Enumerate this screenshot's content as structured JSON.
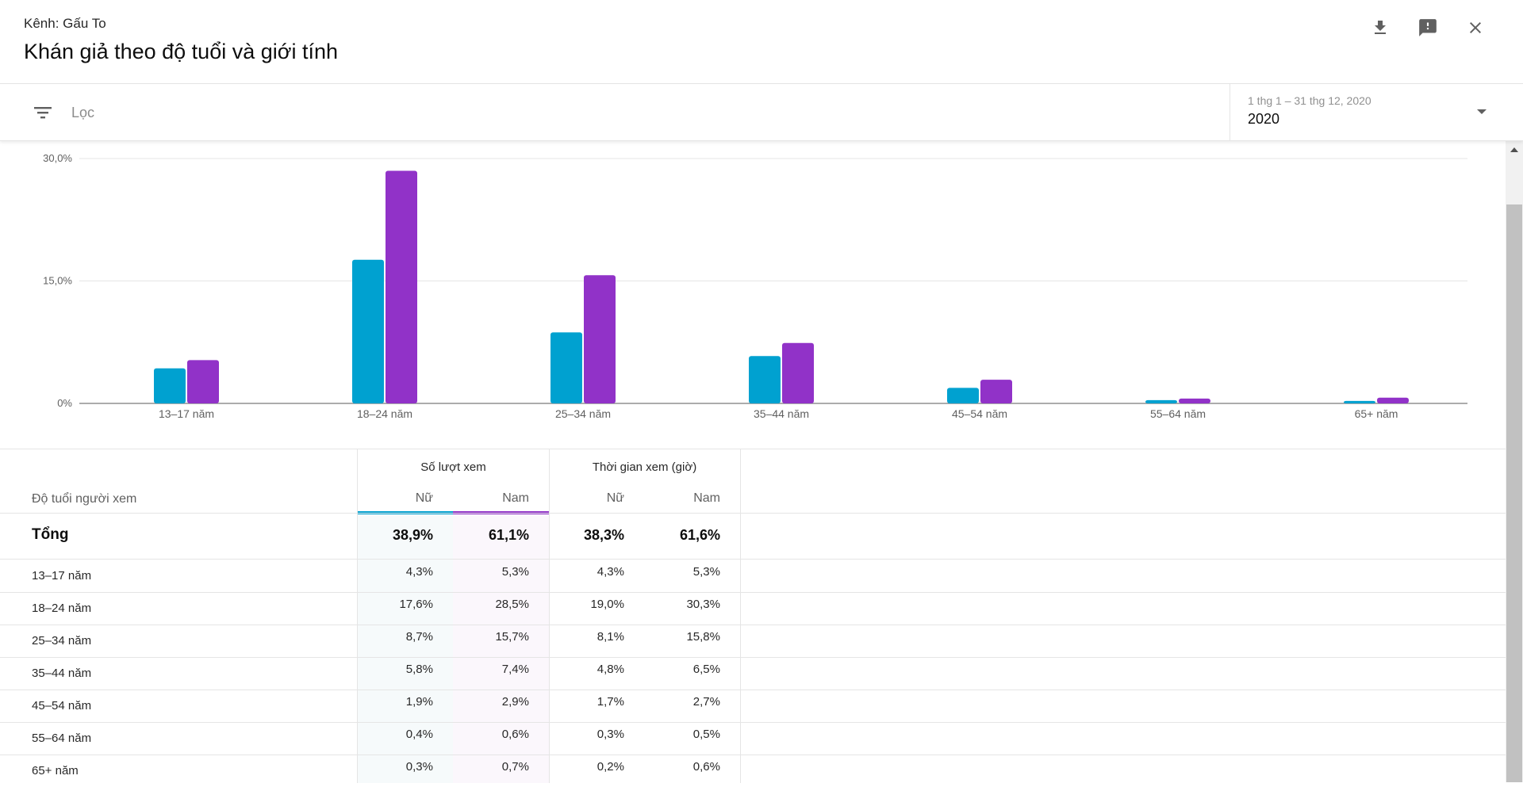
{
  "header": {
    "channel": "Kênh: Gấu To",
    "title": "Khán giả theo độ tuổi và giới tính",
    "icons": [
      "download-icon",
      "feedback-icon",
      "close-icon"
    ]
  },
  "filter": {
    "placeholder": "Lọc",
    "date_range": "1 thg 1 – 31 thg 12, 2020",
    "date_value": "2020"
  },
  "colors": {
    "female": "#00a1d0",
    "male": "#9132c8"
  },
  "chart_data": {
    "type": "bar",
    "categories": [
      "13–17 năm",
      "18–24 năm",
      "25–34 năm",
      "35–44 năm",
      "45–54 năm",
      "55–64 năm",
      "65+ năm"
    ],
    "series": [
      {
        "name": "Nữ",
        "values": [
          4.3,
          17.6,
          8.7,
          5.8,
          1.9,
          0.4,
          0.3
        ]
      },
      {
        "name": "Nam",
        "values": [
          5.3,
          28.5,
          15.7,
          7.4,
          2.9,
          0.6,
          0.7
        ]
      }
    ],
    "yticks": [
      "30,0%",
      "15,0%",
      "0%"
    ],
    "ytick_values": [
      30,
      15,
      0
    ],
    "ylim": [
      0,
      30
    ],
    "grid": true
  },
  "table": {
    "age_header": "Độ tuổi người xem",
    "groups": [
      "Số lượt xem",
      "Thời gian xem (giờ)"
    ],
    "sub_headers": [
      "Nữ",
      "Nam",
      "Nữ",
      "Nam"
    ],
    "total": {
      "label": "Tổng",
      "values": [
        "38,9%",
        "61,1%",
        "38,3%",
        "61,6%"
      ]
    },
    "rows": [
      {
        "label": "13–17 năm",
        "values": [
          "4,3%",
          "5,3%",
          "4,3%",
          "5,3%"
        ]
      },
      {
        "label": "18–24 năm",
        "values": [
          "17,6%",
          "28,5%",
          "19,0%",
          "30,3%"
        ]
      },
      {
        "label": "25–34 năm",
        "values": [
          "8,7%",
          "15,7%",
          "8,1%",
          "15,8%"
        ]
      },
      {
        "label": "35–44 năm",
        "values": [
          "5,8%",
          "7,4%",
          "4,8%",
          "6,5%"
        ]
      },
      {
        "label": "45–54 năm",
        "values": [
          "1,9%",
          "2,9%",
          "1,7%",
          "2,7%"
        ]
      },
      {
        "label": "55–64 năm",
        "values": [
          "0,4%",
          "0,6%",
          "0,3%",
          "0,5%"
        ]
      },
      {
        "label": "65+ năm",
        "values": [
          "0,3%",
          "0,7%",
          "0,2%",
          "0,6%"
        ]
      }
    ]
  }
}
